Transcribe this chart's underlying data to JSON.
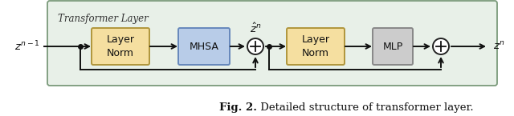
{
  "fig_width": 6.4,
  "fig_height": 1.45,
  "dpi": 100,
  "bg_outer": "#ffffff",
  "bg_panel": "#e8f0e8",
  "panel_border_color": "#7a9a7a",
  "panel_label": "Transformer Layer",
  "box1_label": "Layer\nNorm",
  "box1_color": "#f5dfa0",
  "box1_edge": "#b0963c",
  "box2_label": "MHSA",
  "box2_color": "#b8cce8",
  "box2_edge": "#6688bb",
  "box3_label": "Layer\nNorm",
  "box3_color": "#f5dfa0",
  "box3_edge": "#b0963c",
  "box4_label": "MLP",
  "box4_color": "#cccccc",
  "box4_edge": "#888888",
  "circle_color": "#ffffff",
  "circle_edge": "#222222",
  "arrow_color": "#111111",
  "label_zn1": "$z^{n-1}$",
  "label_zn": "$z^n$",
  "label_zhat": "$\\hat{z}^n$",
  "caption_bold": "Fig. 2.",
  "caption_normal": " Detailed structure of transformer layer."
}
